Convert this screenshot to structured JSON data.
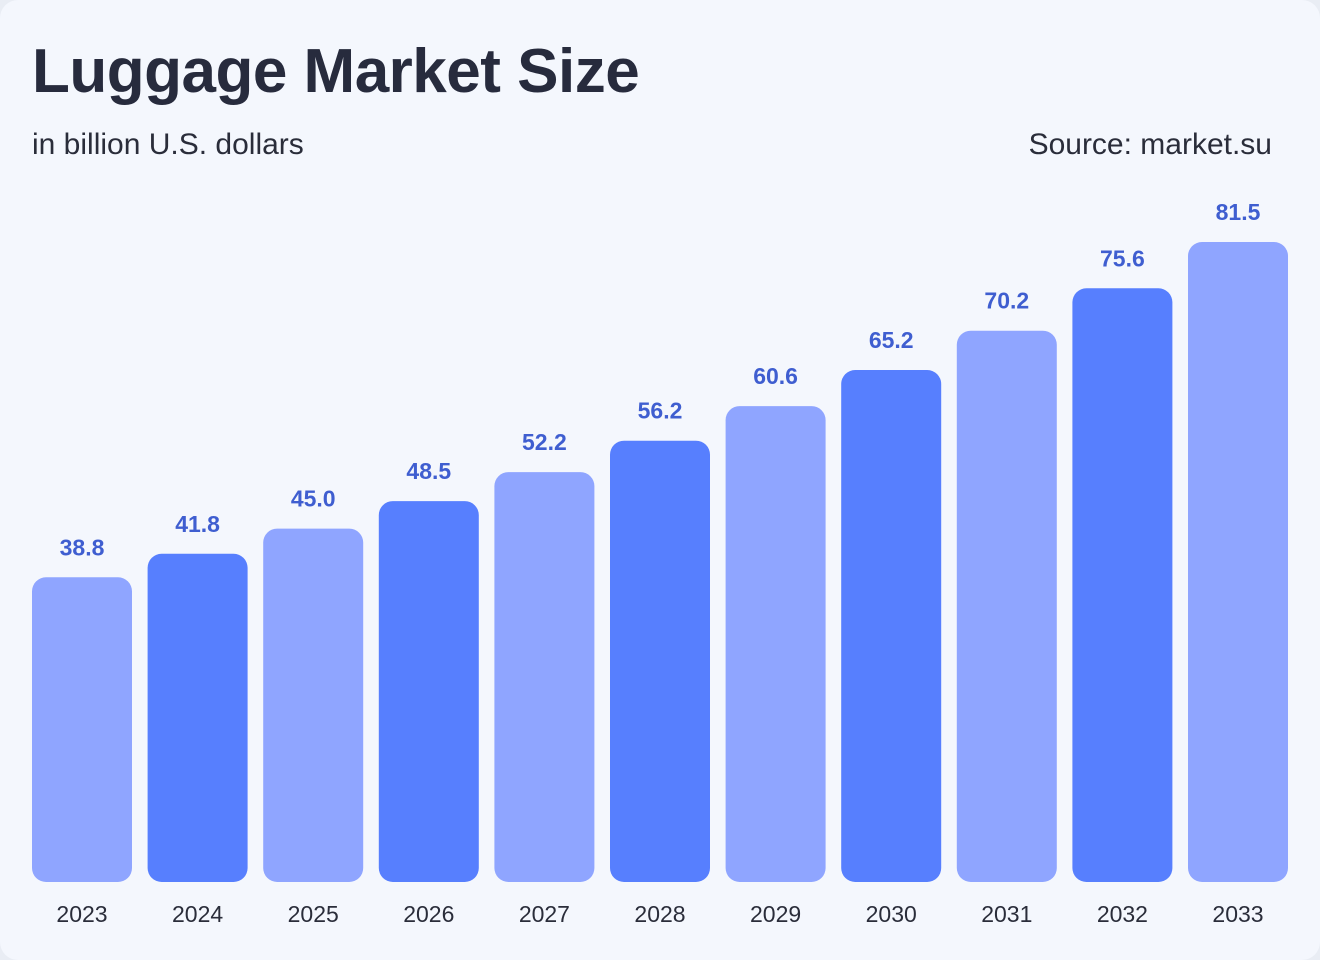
{
  "header": {
    "title": "Luggage Market Size",
    "subtitle": "in billion U.S. dollars",
    "source": "Source: market.su"
  },
  "colors": {
    "bar_light": "#8fa5ff",
    "bar_dark": "#577ffe",
    "value_label": "#3f5ed0",
    "text": "#272b3d",
    "background": "#f4f7fd"
  },
  "chart_data": {
    "type": "bar",
    "title": "Luggage Market Size",
    "subtitle": "in billion U.S. dollars",
    "xlabel": "",
    "ylabel": "",
    "categories": [
      "2023",
      "2024",
      "2025",
      "2026",
      "2027",
      "2028",
      "2029",
      "2030",
      "2031",
      "2032",
      "2033"
    ],
    "values": [
      38.8,
      41.8,
      45.0,
      48.5,
      52.2,
      56.2,
      60.6,
      65.2,
      70.2,
      75.6,
      81.5
    ],
    "value_labels": [
      "38.8",
      "41.8",
      "45.0",
      "48.5",
      "52.2",
      "56.2",
      "60.6",
      "65.2",
      "70.2",
      "75.6",
      "81.5"
    ],
    "bar_color_pattern": [
      "light",
      "dark",
      "light",
      "dark",
      "light",
      "dark",
      "light",
      "dark",
      "light",
      "dark",
      "light"
    ],
    "grid": false,
    "legend": "none"
  }
}
